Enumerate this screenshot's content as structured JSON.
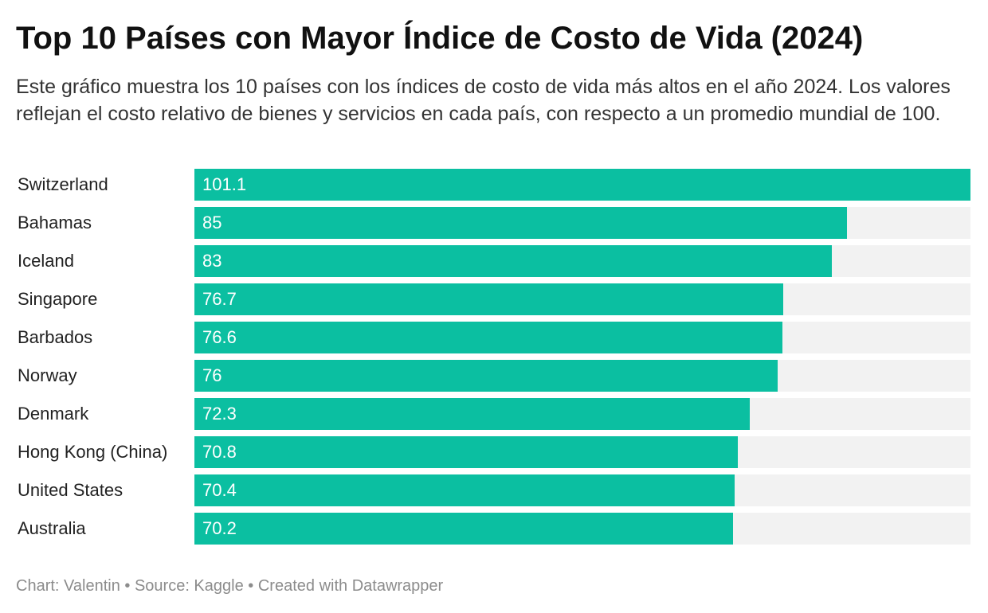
{
  "title": "Top 10 Países con Mayor Índice de Costo de Vida (2024)",
  "subtitle": "Este gráfico muestra los 10 países con los índices de costo de vida más altos en el año 2024. Los valores reflejan el costo relativo de bienes y servicios en cada país, con respecto a un promedio mundial de 100.",
  "footer": {
    "credit": "Chart: Valentin",
    "source": "Source: Kaggle",
    "tool": "Created with Datawrapper",
    "separator": "•"
  },
  "colors": {
    "bar": "#0bbfa1",
    "track": "#f2f2f2",
    "value_text": "#ffffff"
  },
  "chart_data": {
    "type": "bar",
    "orientation": "horizontal",
    "categories": [
      "Switzerland",
      "Bahamas",
      "Iceland",
      "Singapore",
      "Barbados",
      "Norway",
      "Denmark",
      "Hong Kong (China)",
      "United States",
      "Australia"
    ],
    "values": [
      101.1,
      85,
      83,
      76.7,
      76.6,
      76,
      72.3,
      70.8,
      70.4,
      70.2
    ],
    "value_labels": [
      "101.1",
      "85",
      "83",
      "76.7",
      "76.6",
      "76",
      "72.3",
      "70.8",
      "70.4",
      "70.2"
    ],
    "xlim": [
      0,
      101.1
    ],
    "grid": false,
    "legend": "none"
  }
}
